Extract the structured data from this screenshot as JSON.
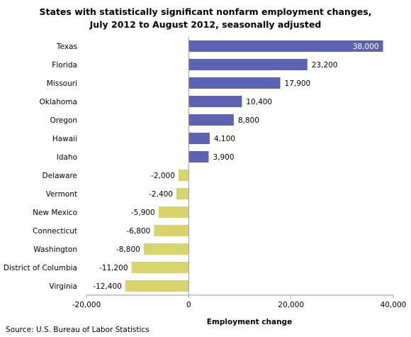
{
  "chart_data": {
    "type": "bar",
    "orientation": "horizontal",
    "title": "States with statistically significant nonfarm employment changes, July 2012 to August 2012, seasonally adjusted",
    "title_lines": [
      "States with statistically significant nonfarm employment changes,",
      "July 2012 to August 2012, seasonally adjusted"
    ],
    "categories": [
      "Texas",
      "Florida",
      "Missouri",
      "Oklahoma",
      "Oregon",
      "Hawaii",
      "Idaho",
      "Delaware",
      "Vermont",
      "New Mexico",
      "Connecticut",
      "Washington",
      "District of Columbia",
      "Virginia"
    ],
    "values": [
      38000,
      23200,
      17900,
      10400,
      8800,
      4100,
      3900,
      -2000,
      -2400,
      -5900,
      -6800,
      -8800,
      -11200,
      -12400
    ],
    "value_labels": [
      "38,000",
      "23,200",
      "17,900",
      "10,400",
      "8,800",
      "4,100",
      "3,900",
      "-2,000",
      "-2,400",
      "-5,900",
      "-6,800",
      "-8,800",
      "-11,200",
      "-12,400"
    ],
    "xlabel": "Employment change",
    "ylabel": "",
    "xlim": [
      -20000,
      40000
    ],
    "xticks": [
      -20000,
      0,
      20000,
      40000
    ],
    "xtick_labels": [
      "-20,000",
      "0",
      "20,000",
      "40,000"
    ],
    "grid": false,
    "legend": "none",
    "colors": {
      "positive": "#5B63B2",
      "negative": "#D8D46E",
      "inside_label": "#ffffff",
      "axis": "#9a9a9a"
    }
  },
  "source": "Source: U.S. Bureau of Labor Statistics"
}
